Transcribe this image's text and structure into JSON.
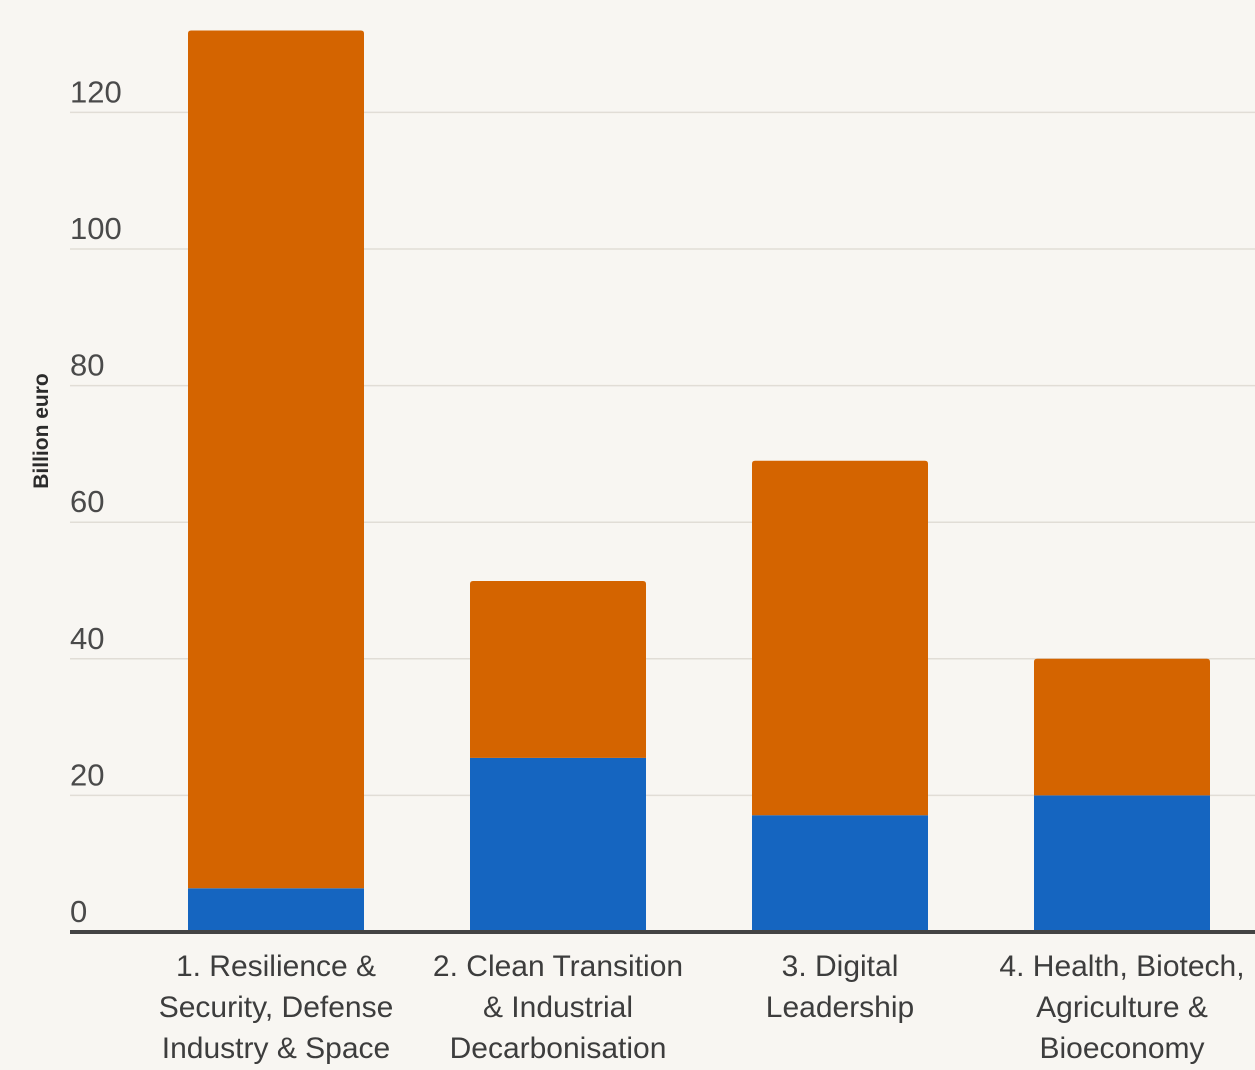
{
  "chart_data": {
    "type": "bar",
    "stacked": true,
    "title": "",
    "xlabel": "",
    "ylabel": "Billion euro",
    "ylim": [
      0,
      130
    ],
    "yticks": [
      0,
      20,
      40,
      60,
      80,
      100,
      120
    ],
    "grid": true,
    "categories": [
      [
        "1. Resilience &",
        "Security, Defense",
        "Industry & Space"
      ],
      [
        "2. Clean Transition",
        "& Industrial",
        "Decarbonisation"
      ],
      [
        "3. Digital",
        "Leadership"
      ],
      [
        "4. Health, Biotech,",
        "Agriculture &",
        "Bioeconomy"
      ]
    ],
    "series": [
      {
        "color": "#1565c0",
        "values": [
          6.4,
          25.5,
          17.1,
          20.0
        ]
      },
      {
        "color": "#d46400",
        "values": [
          125.6,
          25.9,
          51.9,
          20.0
        ]
      }
    ]
  }
}
